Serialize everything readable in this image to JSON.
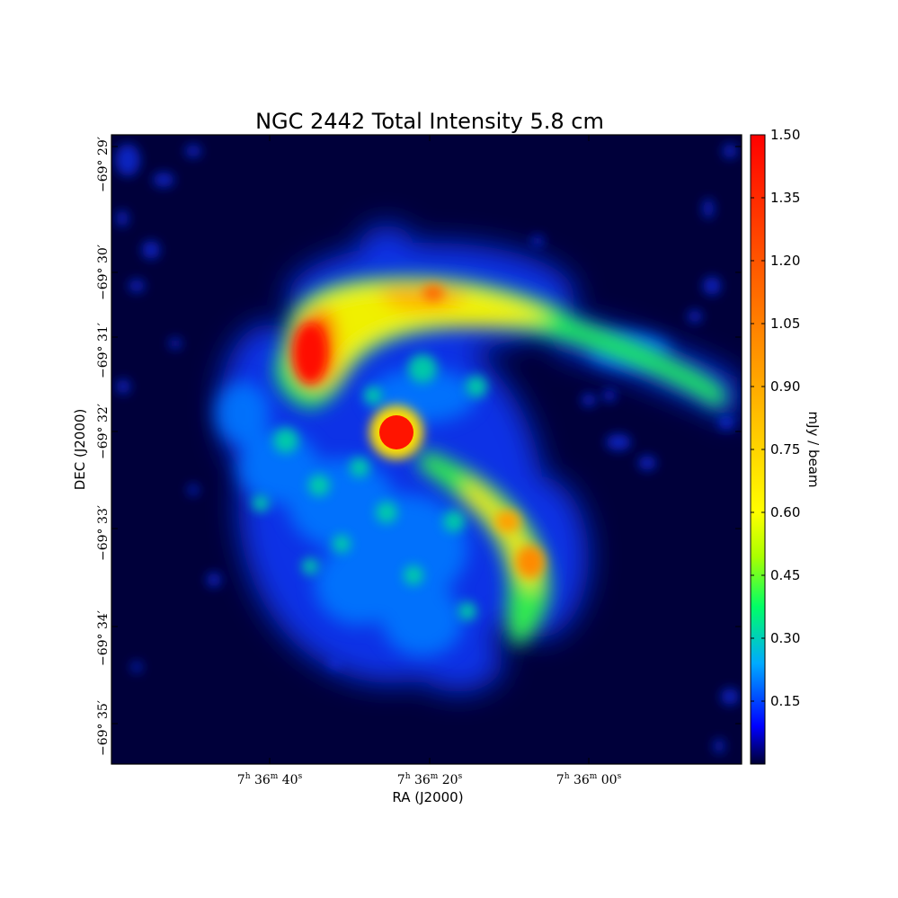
{
  "chart_data": {
    "type": "heatmap",
    "title": "NGC 2442 Total Intensity 5.8 cm",
    "xlabel": "RA (J2000)",
    "ylabel": "DEC (J2000)",
    "x_ticks": [
      {
        "h": "7",
        "m": "36",
        "s": "40"
      },
      {
        "h": "7",
        "m": "36",
        "s": "20"
      },
      {
        "h": "7",
        "m": "36",
        "s": "00"
      }
    ],
    "y_ticks": [
      {
        "deg": "−69°",
        "arcmin": "29′"
      },
      {
        "deg": "−69°",
        "arcmin": "30′"
      },
      {
        "deg": "−69°",
        "arcmin": "31′"
      },
      {
        "deg": "−69°",
        "arcmin": "32′"
      },
      {
        "deg": "−69°",
        "arcmin": "33′"
      },
      {
        "deg": "−69°",
        "arcmin": "34′"
      },
      {
        "deg": "−69°",
        "arcmin": "35′"
      }
    ],
    "colorbar": {
      "label": "mJy / beam",
      "min": 0.0,
      "max": 1.5,
      "ticks": [
        "0.15",
        "0.30",
        "0.45",
        "0.60",
        "0.75",
        "0.90",
        "1.05",
        "1.20",
        "1.35",
        "1.50"
      ],
      "colormap": [
        "#000033",
        "#0000ff",
        "#00aaff",
        "#00ff66",
        "#aaff00",
        "#ffff00",
        "#ffaa00",
        "#ff5500",
        "#ff0000"
      ]
    },
    "grid": false,
    "background_color": "#00003a"
  }
}
